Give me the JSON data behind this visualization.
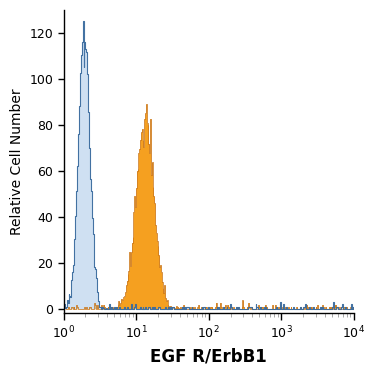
{
  "title": "",
  "xlabel": "EGF R/ErbB1",
  "ylabel": "Relative Cell Number",
  "xlim_log": [
    1,
    10000
  ],
  "ylim": [
    -2,
    130
  ],
  "xlabel_fontsize": 12,
  "ylabel_fontsize": 10,
  "tick_fontsize": 9,
  "blue_fill_color": "#a8c8e8",
  "blue_line_color": "#3a6b9e",
  "orange_fill_color": "#f5a020",
  "orange_line_color": "#c87010",
  "background_color": "#ffffff",
  "blue_peak_log": 0.28,
  "blue_sigma": 0.18,
  "blue_peak_height": 125,
  "blue_n": 6000,
  "orange_peak_log": 1.12,
  "orange_sigma": 0.28,
  "orange_peak_height": 89,
  "orange_n": 8000,
  "n_bins": 350
}
